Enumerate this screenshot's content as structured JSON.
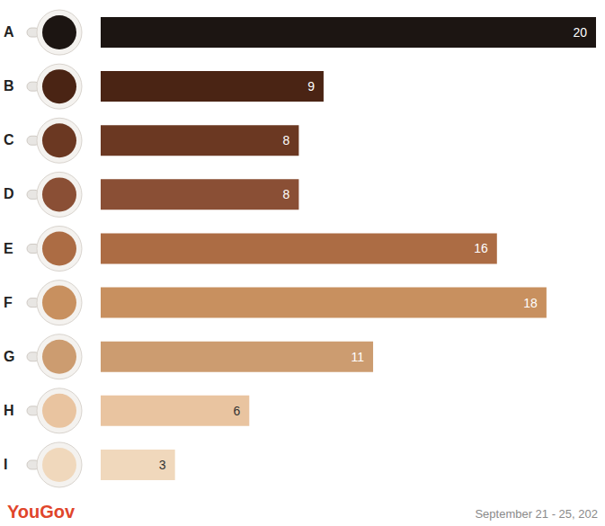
{
  "chart_data": {
    "type": "bar",
    "orientation": "horizontal",
    "categories": [
      "A",
      "B",
      "C",
      "D",
      "E",
      "F",
      "G",
      "H",
      "I"
    ],
    "values": [
      20,
      9,
      8,
      8,
      16,
      18,
      11,
      6,
      3
    ],
    "colors": [
      "#1c1512",
      "#4a2414",
      "#6b3822",
      "#8a4f35",
      "#ac6c44",
      "#c8905f",
      "#cc9c70",
      "#e9c4a0",
      "#f0d8bc"
    ],
    "xlim": [
      0,
      20
    ],
    "data_labels": true,
    "tick_labels": "y",
    "grid": false,
    "annotations": [
      "YouGov",
      "September 21 - 25, 202"
    ]
  }
}
